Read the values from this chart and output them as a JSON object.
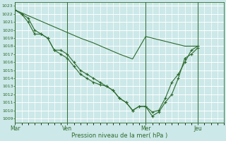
{
  "xlabel": "Pression niveau de la mer( hPa )",
  "bg_color": "#cce8e8",
  "grid_color": "#ffffff",
  "line_color": "#2d6a2d",
  "ylim": [
    1008.5,
    1023.5
  ],
  "yticks": [
    1009,
    1010,
    1011,
    1012,
    1013,
    1014,
    1015,
    1016,
    1017,
    1018,
    1019,
    1020,
    1021,
    1022,
    1023
  ],
  "day_labels": [
    "Mar",
    "Ven",
    "Mer",
    "Jeu"
  ],
  "day_positions": [
    0,
    48,
    120,
    168
  ],
  "xlim": [
    0,
    192
  ],
  "series1": [
    [
      0,
      1022.5
    ],
    [
      6,
      1022.0
    ],
    [
      12,
      1021.0
    ],
    [
      18,
      1019.5
    ],
    [
      24,
      1019.5
    ],
    [
      30,
      1019.0
    ],
    [
      36,
      1017.5
    ],
    [
      42,
      1017.0
    ],
    [
      48,
      1016.5
    ],
    [
      54,
      1015.5
    ],
    [
      60,
      1014.5
    ],
    [
      66,
      1014.0
    ],
    [
      72,
      1013.5
    ],
    [
      78,
      1013.2
    ],
    [
      84,
      1013.0
    ],
    [
      90,
      1012.5
    ],
    [
      96,
      1011.5
    ],
    [
      102,
      1011.0
    ],
    [
      108,
      1010.0
    ],
    [
      114,
      1010.5
    ],
    [
      120,
      1010.5
    ],
    [
      126,
      1009.8
    ],
    [
      132,
      1010.0
    ],
    [
      138,
      1011.5
    ],
    [
      144,
      1013.5
    ],
    [
      150,
      1014.5
    ],
    [
      156,
      1016.0
    ],
    [
      162,
      1017.5
    ],
    [
      168,
      1018.0
    ]
  ],
  "series2": [
    [
      0,
      1022.5
    ],
    [
      12,
      1021.8
    ],
    [
      24,
      1021.1
    ],
    [
      36,
      1020.4
    ],
    [
      48,
      1019.7
    ],
    [
      60,
      1019.0
    ],
    [
      72,
      1018.4
    ],
    [
      84,
      1017.7
    ],
    [
      96,
      1017.0
    ],
    [
      108,
      1016.4
    ],
    [
      120,
      1019.2
    ],
    [
      132,
      1018.8
    ],
    [
      144,
      1018.4
    ],
    [
      156,
      1018.0
    ],
    [
      168,
      1018.0
    ]
  ],
  "series3": [
    [
      0,
      1022.5
    ],
    [
      6,
      1022.0
    ],
    [
      12,
      1021.5
    ],
    [
      18,
      1020.0
    ],
    [
      24,
      1019.5
    ],
    [
      30,
      1019.0
    ],
    [
      36,
      1017.5
    ],
    [
      42,
      1017.5
    ],
    [
      48,
      1017.0
    ],
    [
      54,
      1016.0
    ],
    [
      60,
      1015.0
    ],
    [
      66,
      1014.5
    ],
    [
      72,
      1014.0
    ],
    [
      78,
      1013.5
    ],
    [
      84,
      1013.0
    ],
    [
      90,
      1012.5
    ],
    [
      96,
      1011.5
    ],
    [
      102,
      1011.0
    ],
    [
      108,
      1010.0
    ],
    [
      114,
      1010.5
    ],
    [
      120,
      1010.5
    ],
    [
      126,
      1009.3
    ],
    [
      132,
      1009.8
    ],
    [
      138,
      1011.0
    ],
    [
      144,
      1012.0
    ],
    [
      150,
      1014.0
    ],
    [
      156,
      1016.5
    ],
    [
      162,
      1017.0
    ],
    [
      168,
      1017.8
    ]
  ]
}
